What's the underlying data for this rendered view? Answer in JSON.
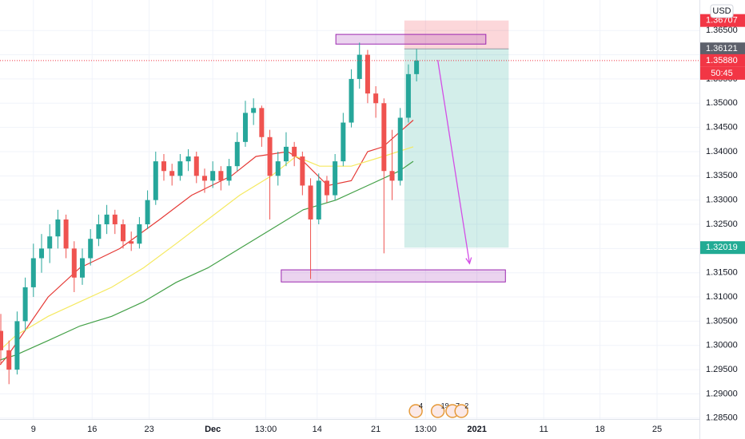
{
  "chart_data": {
    "type": "candlestick",
    "currency": "USD",
    "xlim": [
      -4.1,
      81.7
    ],
    "ylim": [
      1.2848,
      1.3713
    ],
    "grid": true,
    "xticks": [
      {
        "value": 0,
        "label": "9"
      },
      {
        "value": 7.2,
        "label": "16"
      },
      {
        "value": 14.2,
        "label": "23"
      },
      {
        "value": 22,
        "label": "Dec"
      },
      {
        "value": 28.5,
        "label": "13:00"
      },
      {
        "value": 34.8,
        "label": "14"
      },
      {
        "value": 42,
        "label": "21"
      },
      {
        "value": 48.1,
        "label": "13:00"
      },
      {
        "value": 54.4,
        "label": "2021"
      },
      {
        "value": 62.6,
        "label": "11"
      },
      {
        "value": 69.5,
        "label": "18"
      },
      {
        "value": 76.5,
        "label": "25"
      }
    ],
    "yticks": [
      {
        "value": 1.285,
        "label": "1.28500"
      },
      {
        "value": 1.29,
        "label": "1.29000"
      },
      {
        "value": 1.295,
        "label": "1.29500"
      },
      {
        "value": 1.3,
        "label": "1.30000"
      },
      {
        "value": 1.305,
        "label": "1.30500"
      },
      {
        "value": 1.31,
        "label": "1.31000"
      },
      {
        "value": 1.315,
        "label": "1.31500"
      },
      {
        "value": 1.32,
        "label": "1.32000"
      },
      {
        "value": 1.325,
        "label": "1.32500"
      },
      {
        "value": 1.33,
        "label": "1.33000"
      },
      {
        "value": 1.335,
        "label": "1.33500"
      },
      {
        "value": 1.34,
        "label": "1.34000"
      },
      {
        "value": 1.345,
        "label": "1.34500"
      },
      {
        "value": 1.35,
        "label": "1.35000"
      },
      {
        "value": 1.355,
        "label": "1.35500"
      },
      {
        "value": 1.36,
        "label": "1.36000"
      },
      {
        "value": 1.365,
        "label": "1.36500"
      }
    ],
    "up_color": "#26a69a",
    "down_color": "#ef5350",
    "x": [
      -4,
      -3,
      -2,
      -1,
      0,
      1,
      2,
      3,
      4,
      5,
      6,
      7,
      8,
      9,
      10,
      11,
      12,
      13,
      14,
      15,
      16,
      17,
      18,
      19,
      20,
      21,
      22,
      23,
      24,
      25,
      26,
      27,
      28,
      29,
      30,
      31,
      32,
      33,
      34,
      35,
      36,
      37,
      38,
      39,
      40,
      41,
      42,
      43,
      44,
      45,
      46,
      47
    ],
    "open": [
      1.303,
      1.299,
      1.295,
      1.305,
      1.312,
      1.318,
      1.32,
      1.3225,
      1.326,
      1.32,
      1.314,
      1.318,
      1.322,
      1.325,
      1.327,
      1.325,
      1.3215,
      1.321,
      1.325,
      1.33,
      1.338,
      1.336,
      1.335,
      1.338,
      1.339,
      1.335,
      1.334,
      1.336,
      1.334,
      1.337,
      1.342,
      1.348,
      1.349,
      1.343,
      1.335,
      1.338,
      1.341,
      1.339,
      1.333,
      1.326,
      1.334,
      1.331,
      1.338,
      1.346,
      1.355,
      1.36,
      1.352,
      1.35,
      1.336,
      1.334,
      1.347,
      1.356
    ],
    "high": [
      1.3065,
      1.301,
      1.307,
      1.314,
      1.321,
      1.323,
      1.325,
      1.328,
      1.327,
      1.3215,
      1.32,
      1.324,
      1.327,
      1.329,
      1.328,
      1.326,
      1.3235,
      1.3265,
      1.332,
      1.34,
      1.3395,
      1.3375,
      1.3395,
      1.3405,
      1.34,
      1.3365,
      1.338,
      1.337,
      1.3385,
      1.344,
      1.3505,
      1.351,
      1.3495,
      1.3445,
      1.34,
      1.344,
      1.342,
      1.34,
      1.3345,
      1.3355,
      1.335,
      1.3395,
      1.348,
      1.357,
      1.3625,
      1.361,
      1.3535,
      1.351,
      1.3445,
      1.349,
      1.358,
      1.3612
    ],
    "low": [
      1.296,
      1.292,
      1.294,
      1.303,
      1.31,
      1.315,
      1.317,
      1.32,
      1.318,
      1.311,
      1.3125,
      1.3165,
      1.3205,
      1.323,
      1.323,
      1.32,
      1.3195,
      1.32,
      1.324,
      1.329,
      1.334,
      1.333,
      1.334,
      1.336,
      1.3335,
      1.3315,
      1.3325,
      1.332,
      1.333,
      1.336,
      1.341,
      1.3455,
      1.341,
      1.326,
      1.333,
      1.337,
      1.337,
      1.331,
      1.3137,
      1.325,
      1.3295,
      1.33,
      1.337,
      1.345,
      1.353,
      1.35,
      1.347,
      1.319,
      1.33,
      1.333,
      1.346,
      1.3545
    ],
    "close": [
      1.299,
      1.295,
      1.305,
      1.312,
      1.318,
      1.32,
      1.3225,
      1.326,
      1.32,
      1.314,
      1.318,
      1.322,
      1.325,
      1.327,
      1.325,
      1.3215,
      1.321,
      1.325,
      1.33,
      1.338,
      1.336,
      1.335,
      1.338,
      1.339,
      1.335,
      1.334,
      1.336,
      1.334,
      1.337,
      1.342,
      1.348,
      1.349,
      1.343,
      1.335,
      1.338,
      1.341,
      1.339,
      1.333,
      1.326,
      1.334,
      1.331,
      1.338,
      1.346,
      1.355,
      1.36,
      1.352,
      1.35,
      1.336,
      1.334,
      1.347,
      1.356,
      1.3588
    ],
    "overlays": [
      {
        "color": "#e53935",
        "x": [
          -4.1,
          -3.1,
          1.8,
          5.7,
          10.6,
          15.5,
          19.4,
          24.3,
          27.3,
          31.2,
          33.1,
          36.1,
          39,
          41,
          42.9,
          44.9,
          46.6
        ],
        "values": [
          1.296,
          1.298,
          1.31,
          1.316,
          1.32,
          1.326,
          1.331,
          1.335,
          1.339,
          1.34,
          1.338,
          1.333,
          1.334,
          1.34,
          1.341,
          1.344,
          1.3465
        ]
      },
      {
        "color": "#f5e960",
        "x": [
          -4.1,
          -2.2,
          1.8,
          5.7,
          9.6,
          13.5,
          17.5,
          21.4,
          25.3,
          29.2,
          32.2,
          35.1,
          39,
          42.9,
          46.6
        ],
        "values": [
          1.299,
          1.302,
          1.306,
          1.309,
          1.312,
          1.316,
          1.321,
          1.326,
          1.331,
          1.335,
          1.339,
          1.337,
          1.337,
          1.339,
          1.341
        ]
      },
      {
        "color": "#43a047",
        "x": [
          -4.1,
          -2.2,
          1.8,
          5.7,
          9.6,
          13.5,
          17.5,
          21.4,
          25.3,
          29.2,
          33.1,
          37.1,
          41,
          44.9,
          46.6
        ],
        "values": [
          1.297,
          1.298,
          1.301,
          1.304,
          1.306,
          1.309,
          1.313,
          1.316,
          1.32,
          1.324,
          1.328,
          1.33,
          1.333,
          1.336,
          1.338
        ]
      }
    ],
    "position": {
      "x": [
        45.5,
        58.3
      ],
      "stop": {
        "value": 1.36707,
        "label": "1.36707"
      },
      "entry": {
        "value": 1.36121,
        "label": "1.36121"
      },
      "target": {
        "value": 1.32019,
        "label": "1.32019"
      }
    },
    "last_price": {
      "value": 1.3588,
      "label": "1.35880"
    },
    "countdown": "50:45",
    "zones": [
      {
        "x": [
          37.1,
          55.5
        ],
        "y": [
          1.3622,
          1.3642
        ]
      },
      {
        "x": [
          30.4,
          57.9
        ],
        "y": [
          1.3131,
          1.3156
        ]
      }
    ],
    "arrow": {
      "x": [
        49.6,
        53.5
      ],
      "y": [
        1.3589,
        1.3169
      ],
      "color": "#d34ee6"
    },
    "events": [
      {
        "x": 46.9,
        "count": 4
      },
      {
        "x": 49.6,
        "count": 19
      },
      {
        "x": 51.4,
        "count": 7
      },
      {
        "x": 52.5,
        "count": 2
      }
    ]
  }
}
